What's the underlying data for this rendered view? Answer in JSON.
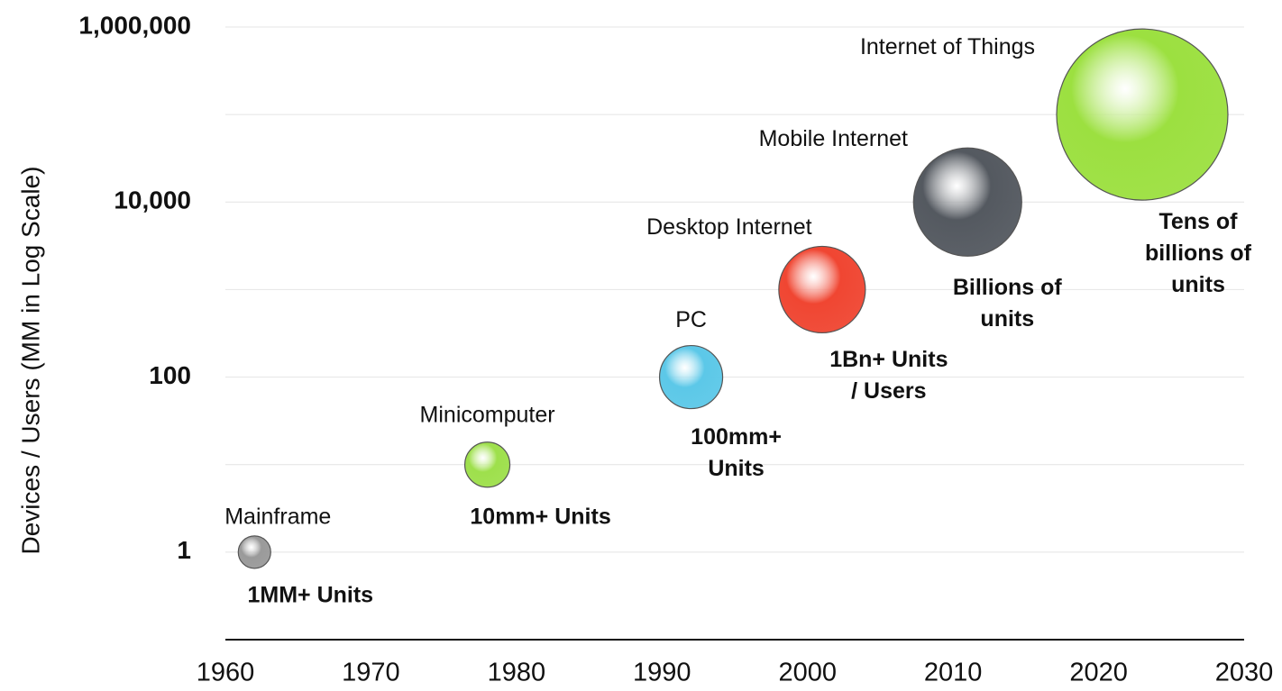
{
  "chart_data": {
    "type": "bubble",
    "y_label": "Devices / Users (MM in Log Scale)",
    "y_log": true,
    "grid": true,
    "xlim": [
      1960,
      2030
    ],
    "xticks": [
      1960,
      1970,
      1980,
      1990,
      2000,
      2010,
      2020,
      2030
    ],
    "ylim": [
      0.1,
      1000000
    ],
    "yticks": [
      1,
      100,
      {
        "value": 10000,
        "label": "10,000"
      },
      {
        "value": 1000000,
        "label": "1,000,000"
      }
    ],
    "minor_yticks": [
      10,
      1000,
      100000
    ],
    "x": [
      1962,
      1978,
      1992,
      2001,
      2011,
      2023
    ],
    "values": [
      1,
      10,
      100,
      1000,
      10000,
      100000
    ],
    "sizes": [
      18,
      25,
      35,
      48,
      60,
      95
    ],
    "colors": [
      "#9a9a9a",
      "#9ee04c",
      "#5cc8e8",
      "#f04632",
      "#545960",
      "#9ce040"
    ],
    "labels": [
      "Mainframe",
      "Minicomputer",
      "PC",
      "Desktop Internet",
      "Mobile Internet",
      "Internet of Things"
    ],
    "notes": [
      [
        "1MM+ Units"
      ],
      [
        "10mm+ Units"
      ],
      [
        "100mm+",
        "Units"
      ],
      [
        "1Bn+ Units",
        "/ Users"
      ],
      [
        "Billions of",
        "units"
      ],
      [
        "Tens of",
        "billions of",
        "units"
      ]
    ]
  }
}
